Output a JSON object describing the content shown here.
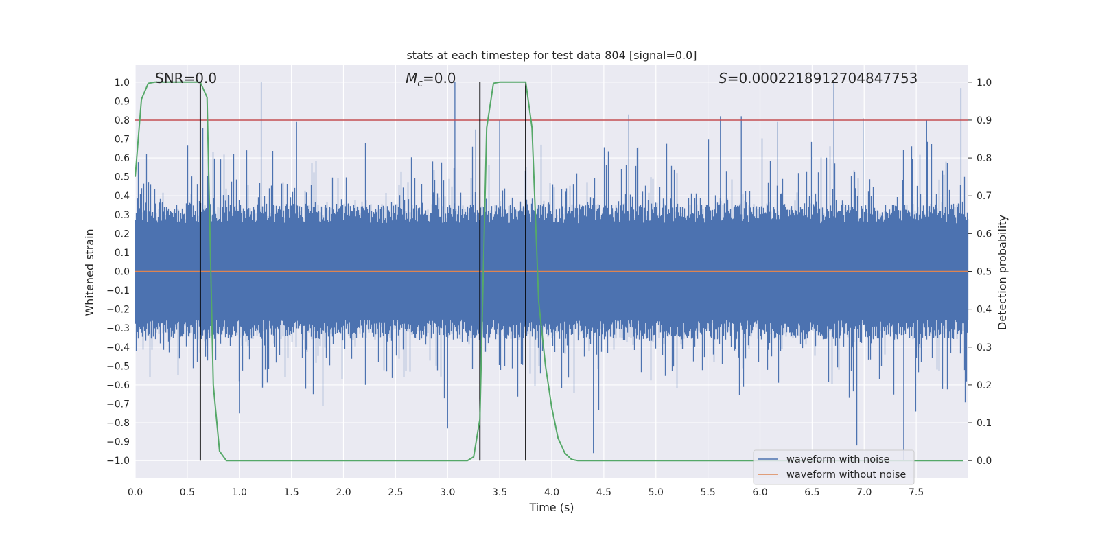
{
  "chart_data": {
    "type": "line",
    "title": "stats at each timestep for test data 804 [signal=0.0]",
    "xlabel": "Time (s)",
    "ylabel_left": "Whitened strain",
    "ylabel_right": "Detection probability",
    "xlim": [
      0.0,
      8.0
    ],
    "ylim_left": [
      -1.09,
      1.09
    ],
    "ylim_right": [
      -0.045,
      1.045
    ],
    "x_ticks": [
      "0.0",
      "0.5",
      "1.0",
      "1.5",
      "2.0",
      "2.5",
      "3.0",
      "3.5",
      "4.0",
      "4.5",
      "5.0",
      "5.5",
      "6.0",
      "6.5",
      "7.0",
      "7.5"
    ],
    "y_left_ticks": [
      "1.0",
      "0.9",
      "0.8",
      "0.7",
      "0.6",
      "0.5",
      "0.4",
      "0.3",
      "0.2",
      "0.1",
      "0.0",
      "-0.1",
      "-0.2",
      "-0.3",
      "-0.4",
      "-0.5",
      "-0.6",
      "-0.7",
      "-0.8",
      "-0.9",
      "-1.0"
    ],
    "y_right_ticks": [
      "1.0",
      "0.9",
      "0.8",
      "0.7",
      "0.6",
      "0.5",
      "0.4",
      "0.3",
      "0.2",
      "0.1",
      "0.0"
    ],
    "grid": true,
    "annotations": {
      "snr": "SNR=0.0",
      "mc_symbol": "M",
      "mc_sub": "c",
      "mc_value": "=0.0",
      "s_symbol": "S",
      "s_value": "=0.0002218912704847753"
    },
    "threshold": {
      "axis": "right",
      "value": 0.9,
      "color": "#c44e52"
    },
    "vertical_lines": [
      0.625,
      3.31,
      3.75
    ],
    "legend": {
      "location": "lower right",
      "entries": [
        {
          "label": "waveform with noise",
          "color": "#4c72b0"
        },
        {
          "label": "waveform without noise",
          "color": "#dd8452"
        }
      ]
    },
    "series": [
      {
        "name": "waveform with noise",
        "axis": "left",
        "color": "#4c72b0",
        "kind": "noise",
        "sampling_rate": 2048,
        "duration": 8.0,
        "band_amplitude": 0.3,
        "spike_peaks": [
          [
            1.21,
            1.0
          ],
          [
            3.07,
            1.0
          ],
          [
            6.71,
            1.0
          ],
          [
            7.93,
            0.97
          ],
          [
            4.74,
            0.83
          ],
          [
            5.82,
            0.82
          ],
          [
            7.38,
            -1.0
          ],
          [
            6.93,
            -0.92
          ],
          [
            4.4,
            -0.96
          ],
          [
            3.0,
            -0.83
          ],
          [
            1.55,
            0.79
          ],
          [
            5.62,
            0.82
          ],
          [
            6.99,
            0.81
          ],
          [
            6.17,
            0.79
          ],
          [
            0.65,
            0.76
          ],
          [
            3.5,
            0.8
          ],
          [
            3.27,
            0.75
          ],
          [
            7.6,
            0.8
          ],
          [
            1.0,
            -0.75
          ]
        ]
      },
      {
        "name": "waveform without noise",
        "axis": "left",
        "color": "#dd8452",
        "kind": "flat",
        "value": 0.0
      },
      {
        "name": "detection probability",
        "axis": "right",
        "color": "#55a868",
        "x": [
          0.0,
          0.06,
          0.125,
          0.19,
          0.25,
          0.31,
          0.375,
          0.44,
          0.5,
          0.56,
          0.625,
          0.69,
          0.75,
          0.81,
          0.875,
          0.94,
          1.0,
          3.19,
          3.25,
          3.31,
          3.375,
          3.44,
          3.5,
          3.56,
          3.625,
          3.69,
          3.75,
          3.81,
          3.875,
          3.94,
          4.0,
          4.06,
          4.125,
          4.19,
          4.25,
          4.31,
          7.95
        ],
        "y": [
          0.75,
          0.955,
          0.997,
          1.0,
          1.0,
          1.0,
          1.0,
          1.0,
          1.0,
          1.0,
          1.0,
          0.96,
          0.2,
          0.025,
          0.0,
          0.0,
          0.0,
          0.0,
          0.01,
          0.11,
          0.88,
          0.997,
          1.0,
          1.0,
          1.0,
          1.0,
          1.0,
          0.88,
          0.42,
          0.25,
          0.14,
          0.06,
          0.02,
          0.003,
          0.0,
          0.0,
          0.0
        ]
      }
    ]
  }
}
